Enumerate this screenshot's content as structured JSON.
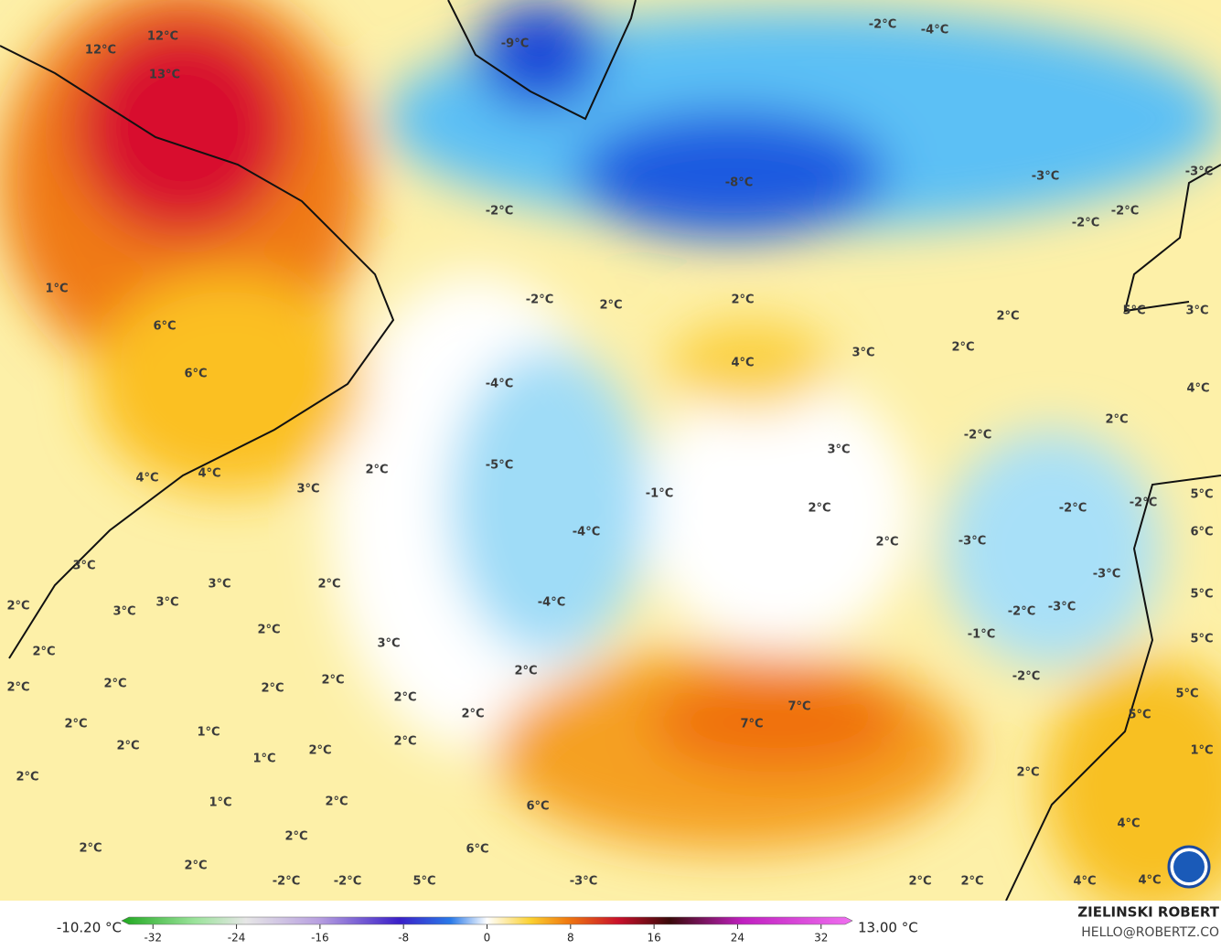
{
  "map": {
    "labels": [
      "12°C",
      "12°C",
      "13°C",
      "1°C",
      "6°C",
      "6°C",
      "4°C",
      "4°C",
      "3°C",
      "2°C",
      "3°C",
      "3°C",
      "2°C",
      "2°C",
      "3°C",
      "3°C",
      "2°C",
      "3°C",
      "2°C",
      "2°C",
      "2°C",
      "2°C",
      "2°C",
      "2°C",
      "2°C",
      "2°C",
      "2°C",
      "2°C",
      "1°C",
      "2°C",
      "1°C",
      "2°C",
      "2°C",
      "1°C",
      "2°C",
      "2°C",
      "2°C",
      "2°C",
      "-2°C",
      "-2°C",
      "5°C",
      "-3°C",
      "6°C",
      "6°C",
      "7°C",
      "7°C",
      "-9°C",
      "-2°C",
      "-4°C",
      "-8°C",
      "-3°C",
      "-3°C",
      "-2°C",
      "-2°C",
      "-2°C",
      "-2°C",
      "2°C",
      "2°C",
      "2°C",
      "2°C",
      "3°C",
      "4°C",
      "3°C",
      "5°C",
      "4°C",
      "2°C",
      "-4°C",
      "-5°C",
      "-1°C",
      "3°C",
      "2°C",
      "-4°C",
      "2°C",
      "-4°C",
      "-2°C",
      "-2°C",
      "-2°C",
      "5°C",
      "6°C",
      "-3°C",
      "-3°C",
      "5°C",
      "-2°C",
      "-3°C",
      "-1°C",
      "5°C",
      "-2°C",
      "5°C",
      "5°C",
      "1°C",
      "2°C",
      "4°C",
      "2°C",
      "2°C",
      "4°C",
      "4°C"
    ],
    "colorbar": {
      "min_label": "-10.20 °C",
      "max_label": "13.00 °C",
      "range": [
        -35,
        35
      ],
      "ticks": [
        -32,
        -24,
        -16,
        -8,
        0,
        8,
        16,
        24,
        32
      ]
    },
    "credit": {
      "name": "ZIELINSKI ROBERT",
      "contact": "HELLO@ROBERTZ.CO"
    }
  }
}
